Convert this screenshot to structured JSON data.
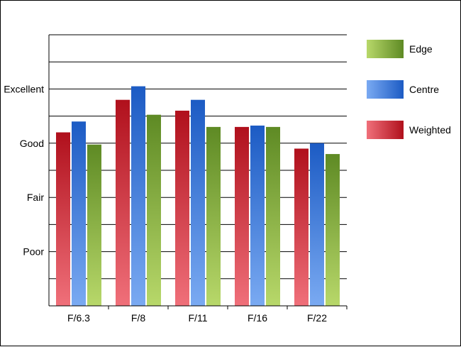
{
  "chart_data": {
    "type": "bar",
    "categories": [
      "F/6.3",
      "F/8",
      "F/11",
      "F/16",
      "F/22"
    ],
    "y_tick_labels": [
      {
        "label": "Poor",
        "value": 2
      },
      {
        "label": "Fair",
        "value": 4
      },
      {
        "label": "Good",
        "value": 6
      },
      {
        "label": "Excellent",
        "value": 8
      }
    ],
    "ylim": [
      0,
      10
    ],
    "grid": true,
    "legend_position": "right",
    "series": [
      {
        "name": "Weighted",
        "values": [
          6.4,
          7.6,
          7.2,
          6.6,
          5.8
        ],
        "colors": {
          "top": "#b0101c",
          "bottom": "#f0707a"
        }
      },
      {
        "name": "Centre",
        "values": [
          6.8,
          8.1,
          7.6,
          6.65,
          6.0
        ],
        "colors": {
          "top": "#1c5bc4",
          "bottom": "#7aaaf2"
        }
      },
      {
        "name": "Edge",
        "values": [
          5.95,
          7.05,
          6.6,
          6.6,
          5.6
        ],
        "colors": {
          "top": "#5e8a24",
          "bottom": "#b8d86a"
        }
      }
    ],
    "legend_order": [
      "Edge",
      "Centre",
      "Weighted"
    ]
  }
}
